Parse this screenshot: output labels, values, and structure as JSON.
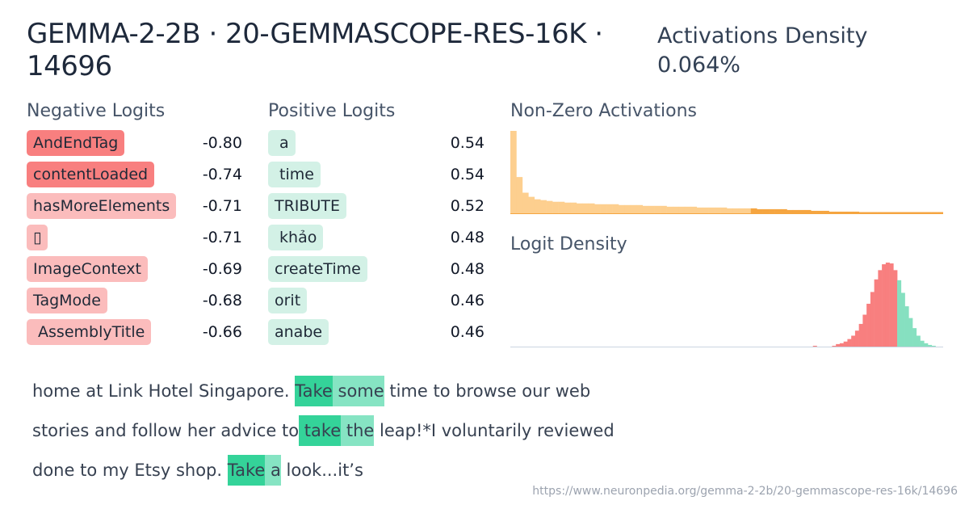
{
  "header": {
    "title": "GEMMA-2-2B · 20-GEMMASCOPE-RES-16K · 14696",
    "density_label": "Activations Density",
    "density_value": "0.064%"
  },
  "negative": {
    "heading": "Negative Logits",
    "items": [
      {
        "token": "AndEndTag",
        "value": "-0.80",
        "strength": "strong"
      },
      {
        "token": "contentLoaded",
        "value": "-0.74",
        "strength": "strong"
      },
      {
        "token": "hasMoreElements",
        "value": "-0.71",
        "strength": "light"
      },
      {
        "token": "▯",
        "value": "-0.71",
        "strength": "light"
      },
      {
        "token": "ImageContext",
        "value": "-0.69",
        "strength": "light"
      },
      {
        "token": "TagMode",
        "value": "-0.68",
        "strength": "light"
      },
      {
        "token": " AssemblyTitle",
        "value": "-0.66",
        "strength": "light"
      }
    ]
  },
  "positive": {
    "heading": "Positive Logits",
    "items": [
      {
        "token": " a",
        "value": "0.54"
      },
      {
        "token": " time",
        "value": "0.54"
      },
      {
        "token": "TRIBUTE",
        "value": "0.52"
      },
      {
        "token": " khảo",
        "value": "0.48"
      },
      {
        "token": "createTime",
        "value": "0.48"
      },
      {
        "token": "orit",
        "value": "0.46"
      },
      {
        "token": "anabe",
        "value": "0.46"
      }
    ]
  },
  "charts": {
    "nonzero_title": "Non-Zero Activations",
    "logit_title": "Logit Density",
    "colors": {
      "activation": "#fdcf8f",
      "activation_dark": "#f5a540",
      "negative": "#f87f7f",
      "positive": "#86e0c0",
      "axis": "#cbd5e1"
    }
  },
  "chart_data": [
    {
      "type": "bar",
      "title": "Non-Zero Activations",
      "values": [
        100,
        44,
        25,
        20,
        17,
        16,
        15,
        14,
        14,
        13,
        13,
        12,
        12,
        12,
        11,
        11,
        11,
        11,
        10,
        10,
        10,
        10,
        9,
        9,
        9,
        9,
        8,
        8,
        8,
        8,
        8,
        7,
        7,
        7,
        7,
        7,
        6,
        6,
        6,
        6,
        6,
        5,
        5,
        5,
        5,
        5,
        4,
        4,
        4,
        4,
        3,
        3,
        3,
        2,
        2,
        2,
        2,
        2,
        1,
        1,
        1,
        1,
        1,
        1,
        1,
        1,
        1,
        1,
        1,
        1,
        1,
        1
      ]
    },
    {
      "type": "bar",
      "title": "Logit Density",
      "values": [
        0,
        0,
        0,
        0,
        0,
        0,
        0,
        0,
        0,
        0,
        0,
        0,
        0,
        0,
        0,
        0,
        0,
        0,
        0,
        0,
        0,
        0,
        0,
        0,
        0,
        0,
        0,
        0,
        0,
        0,
        0,
        0,
        0,
        0,
        0,
        0,
        0,
        0,
        0,
        0,
        0,
        0,
        0,
        0,
        0,
        0,
        0,
        0,
        0,
        0,
        0,
        0,
        0,
        0,
        0,
        0,
        0,
        0,
        0,
        0,
        0,
        0,
        0,
        0,
        0,
        0,
        0,
        0,
        0,
        0,
        0,
        0,
        0,
        0,
        0,
        0,
        0,
        0,
        0,
        1,
        0,
        0,
        0,
        0,
        1,
        3,
        4,
        6,
        9,
        13,
        19,
        27,
        38,
        51,
        65,
        80,
        91,
        98,
        100,
        99,
        91,
        79,
        64,
        48,
        34,
        22,
        13,
        7,
        4,
        2,
        1,
        0,
        0
      ],
      "negative_positive_split_index": 101
    }
  ],
  "examples": {
    "lines": [
      [
        {
          "text": "home at Link Hotel Singapore. ",
          "hl": "none"
        },
        {
          "text": "Take",
          "hl": "strong"
        },
        {
          "text": " some",
          "hl": "light"
        },
        {
          "text": " time to browse our web",
          "hl": "none"
        }
      ],
      [
        {
          "text": "stories and follow her advice to",
          "hl": "none"
        },
        {
          "text": " take",
          "hl": "strong"
        },
        {
          "text": " the",
          "hl": "light"
        },
        {
          "text": " leap!*I voluntarily reviewed",
          "hl": "none"
        }
      ],
      [
        {
          "text": "done to my Etsy shop. ",
          "hl": "none"
        },
        {
          "text": "Take",
          "hl": "strong"
        },
        {
          "text": " a",
          "hl": "light"
        },
        {
          "text": " look...it’s",
          "hl": "none"
        }
      ]
    ]
  },
  "footer": {
    "url": "https://www.neuronpedia.org/gemma-2-2b/20-gemmascope-res-16k/14696"
  }
}
